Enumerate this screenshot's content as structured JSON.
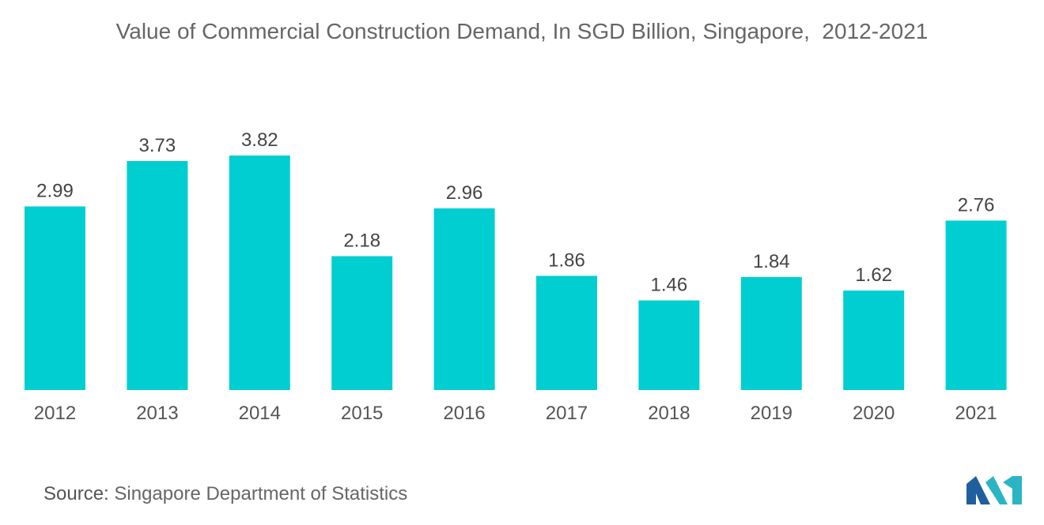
{
  "chart_data": {
    "type": "bar",
    "title": "Value of Commercial Construction Demand, In SGD Billion, Singapore,  2012-2021",
    "categories": [
      "2012",
      "2013",
      "2014",
      "2015",
      "2016",
      "2017",
      "2018",
      "2019",
      "2020",
      "2021"
    ],
    "values": [
      2.99,
      3.73,
      3.82,
      2.18,
      2.96,
      1.86,
      1.46,
      1.84,
      1.62,
      2.76
    ],
    "value_labels": [
      "2.99",
      "3.73",
      "3.82",
      "2.18",
      "2.96",
      "1.86",
      "1.46",
      "1.84",
      "1.62",
      "2.76"
    ],
    "xlabel": "",
    "ylabel": "",
    "ylim": [
      0,
      3.82
    ],
    "grid": false,
    "legend": "none",
    "bar_color": "#00CED1"
  },
  "source": {
    "label": "Source:",
    "text": "Singapore Department of Statistics"
  },
  "logo": {
    "icon": "mordor-intelligence-logo-icon",
    "colors": [
      "#1f5f9e",
      "#2bb5c4"
    ]
  }
}
